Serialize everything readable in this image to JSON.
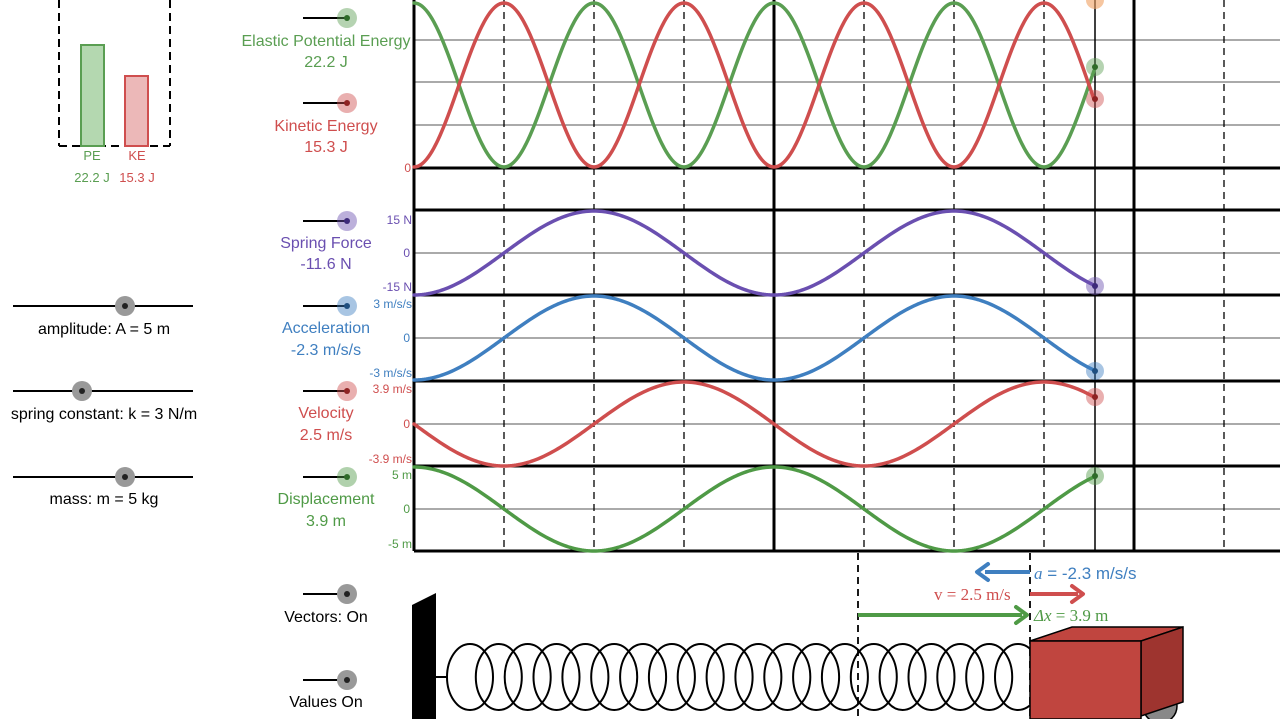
{
  "colors": {
    "pe": "#5a9e52",
    "ke": "#cf4e4e",
    "force": "#6a4fb0",
    "accel": "#3f7fc0",
    "velocity": "#cf4e4e",
    "displacement": "#4f9a46",
    "block": "#c0453f",
    "axis": "#000000",
    "grid": "#888888"
  },
  "energy_bars": {
    "pe": {
      "label": "PE",
      "value_text": "22.2 J",
      "fraction": 0.59
    },
    "ke": {
      "label": "KE",
      "value_text": "15.3 J",
      "fraction": 0.41
    }
  },
  "sliders": [
    {
      "id": "amplitude",
      "label": "amplitude: A = 5 m",
      "fraction": 0.6
    },
    {
      "id": "spring",
      "label": "spring constant: k = 3 N/m",
      "fraction": 0.38
    },
    {
      "id": "mass",
      "label": "mass: m = 5 kg",
      "fraction": 0.6
    }
  ],
  "toggles": [
    {
      "id": "pe",
      "label": "Elastic Potential Energy",
      "value": "22.2 J",
      "color": "#5a9e52"
    },
    {
      "id": "ke",
      "label": "Kinetic Energy",
      "value": "15.3 J",
      "color": "#cf4e4e"
    },
    {
      "id": "force",
      "label": "Spring Force",
      "value": "-11.6 N",
      "color": "#6a4fb0"
    },
    {
      "id": "accel",
      "label": "Acceleration",
      "value": "-2.3 m/s/s",
      "color": "#3f7fc0"
    },
    {
      "id": "velocity",
      "label": "Velocity",
      "value": "2.5 m/s",
      "color": "#cf4e4e"
    },
    {
      "id": "displacement",
      "label": "Displacement",
      "value": "3.9 m",
      "color": "#4f9a46"
    },
    {
      "id": "vectors",
      "label": "Vectors: On",
      "value": "",
      "color": "#999999"
    },
    {
      "id": "values",
      "label": "Values On",
      "value": "",
      "color": "#999999"
    }
  ],
  "graph_ticks": {
    "energy": {
      "bottom": "0"
    },
    "force": {
      "top": "15 N",
      "mid": "0",
      "bottom": "-15 N"
    },
    "accel": {
      "top": "3 m/s/s",
      "mid": "0",
      "bottom": "-3 m/s/s"
    },
    "velocity": {
      "top": "3.9 m/s",
      "mid": "0",
      "bottom": "-3.9 m/s"
    },
    "displacement": {
      "top": "5 m",
      "mid": "0",
      "bottom": "-5 m"
    }
  },
  "vectors": {
    "a_symbol": "a",
    "a_text": " = -2.3 m/s/s",
    "v_text": "v = 2.5 m/s",
    "dx_symbol": "Δx",
    "dx_text": " = 3.9 m"
  },
  "chart_data": [
    {
      "type": "line",
      "series": [
        {
          "name": "Elastic Potential Energy"
        },
        {
          "name": "Kinetic Energy"
        }
      ],
      "ylim": [
        0,
        37.5
      ],
      "current": [
        22.2,
        15.3
      ]
    },
    {
      "type": "line",
      "series": [
        {
          "name": "Spring Force"
        }
      ],
      "ylim": [
        -15,
        15
      ],
      "current": -11.6
    },
    {
      "type": "line",
      "series": [
        {
          "name": "Acceleration"
        }
      ],
      "ylim": [
        -3,
        3
      ],
      "current": -2.3
    },
    {
      "type": "line",
      "series": [
        {
          "name": "Velocity"
        }
      ],
      "ylim": [
        -3.9,
        3.9
      ],
      "current": 2.5
    },
    {
      "type": "line",
      "series": [
        {
          "name": "Displacement"
        }
      ],
      "ylim": [
        -5,
        5
      ],
      "current": 3.9
    }
  ]
}
